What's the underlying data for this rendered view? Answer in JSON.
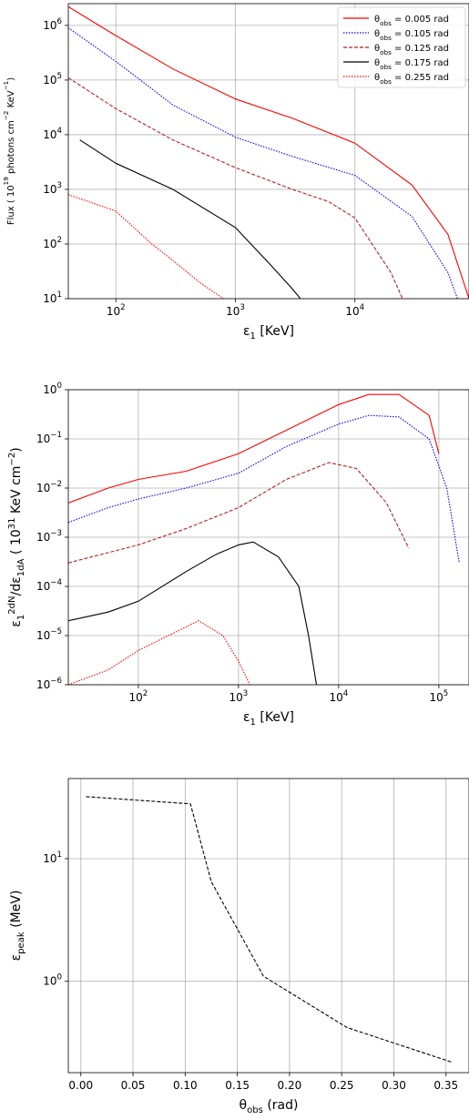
{
  "chart_data": [
    {
      "type": "line",
      "xscale": "log",
      "yscale": "log",
      "xlim": [
        40,
        90000
      ],
      "ylim": [
        10,
        2500000
      ],
      "xlabel": "ε_1 [KeV]",
      "ylabel": "Flux ( 10^19 photons cm^−2 KeV^−1)",
      "x_ticks": [
        {
          "value": 100,
          "base": "10",
          "exp": "2"
        },
        {
          "value": 1000,
          "base": "10",
          "exp": "3"
        },
        {
          "value": 10000,
          "base": "10",
          "exp": "4"
        }
      ],
      "y_ticks": [
        {
          "value": 10,
          "base": "10",
          "exp": "1"
        },
        {
          "value": 100,
          "base": "10",
          "exp": "2"
        },
        {
          "value": 1000,
          "base": "10",
          "exp": "3"
        },
        {
          "value": 10000,
          "base": "10",
          "exp": "4"
        },
        {
          "value": 100000,
          "base": "10",
          "exp": "5"
        },
        {
          "value": 1000000,
          "base": "10",
          "exp": "6"
        }
      ],
      "grid": true,
      "legend_position": "top-right",
      "series": [
        {
          "name": "θ_obs = 0.005 rad",
          "color": "#ff0000",
          "dash": "",
          "x": [
            40,
            100,
            300,
            1000,
            3000,
            10000,
            30000,
            60000,
            90000
          ],
          "y": [
            2200000,
            650000,
            160000,
            45000,
            20000,
            7000,
            1200,
            150,
            10
          ]
        },
        {
          "name": "θ_obs = 0.105 rad",
          "color": "#0000ff",
          "dash": "dotted",
          "x": [
            40,
            100,
            300,
            1000,
            3000,
            10000,
            30000,
            60000,
            72000
          ],
          "y": [
            900000,
            220000,
            35000,
            9000,
            4000,
            1800,
            320,
            30,
            10
          ]
        },
        {
          "name": "θ_obs = 0.125 rad",
          "color": "#b22222",
          "dash": "dashed",
          "x": [
            40,
            100,
            300,
            1000,
            3000,
            6000,
            10000,
            20000,
            25000
          ],
          "y": [
            110000,
            30000,
            8000,
            2500,
            1000,
            600,
            300,
            30,
            10
          ]
        },
        {
          "name": "θ_obs = 0.175 rad",
          "color": "#000000",
          "dash": "",
          "x": [
            50,
            100,
            300,
            1000,
            2000,
            3000,
            3500
          ],
          "y": [
            8000,
            3000,
            1000,
            200,
            40,
            15,
            10
          ]
        },
        {
          "name": "θ_obs = 0.255 rad",
          "color": "#ff0000",
          "dash": "dotted",
          "x": [
            40,
            100,
            200,
            300,
            500,
            700,
            800
          ],
          "y": [
            800,
            400,
            100,
            50,
            20,
            12,
            10
          ]
        }
      ]
    },
    {
      "type": "line",
      "xscale": "log",
      "yscale": "log",
      "xlim": [
        20,
        200000
      ],
      "ylim": [
        1e-06,
        1
      ],
      "xlabel": "ε_1 [KeV]",
      "ylabel": "ε_1^2dN/dε_1dA  ( 10^31 KeV cm^−2)",
      "x_ticks": [
        {
          "value": 100,
          "base": "10",
          "exp": "2"
        },
        {
          "value": 1000,
          "base": "10",
          "exp": "3"
        },
        {
          "value": 10000,
          "base": "10",
          "exp": "4"
        },
        {
          "value": 100000,
          "base": "10",
          "exp": "5"
        }
      ],
      "y_ticks": [
        {
          "value": 1e-06,
          "base": "10",
          "exp": "−6"
        },
        {
          "value": 1e-05,
          "base": "10",
          "exp": "−5"
        },
        {
          "value": 0.0001,
          "base": "10",
          "exp": "−4"
        },
        {
          "value": 0.001,
          "base": "10",
          "exp": "−3"
        },
        {
          "value": 0.01,
          "base": "10",
          "exp": "−2"
        },
        {
          "value": 0.1,
          "base": "10",
          "exp": "−1"
        },
        {
          "value": 1,
          "base": "10",
          "exp": "0"
        }
      ],
      "grid": true,
      "series": [
        {
          "color": "#ff0000",
          "dash": "",
          "x": [
            20,
            50,
            100,
            300,
            1000,
            3000,
            10000,
            20000,
            40000,
            80000,
            100000
          ],
          "y": [
            0.005,
            0.01,
            0.015,
            0.022,
            0.05,
            0.15,
            0.5,
            0.8,
            0.8,
            0.3,
            0.05
          ]
        },
        {
          "color": "#0000ff",
          "dash": "dotted",
          "x": [
            20,
            50,
            100,
            300,
            1000,
            3000,
            10000,
            20000,
            40000,
            80000,
            120000,
            160000
          ],
          "y": [
            0.002,
            0.004,
            0.006,
            0.01,
            0.02,
            0.07,
            0.2,
            0.3,
            0.28,
            0.1,
            0.01,
            0.0003
          ]
        },
        {
          "color": "#b22222",
          "dash": "dashed",
          "x": [
            20,
            100,
            300,
            1000,
            3000,
            8000,
            15000,
            30000,
            50000
          ],
          "y": [
            0.0003,
            0.0007,
            0.0015,
            0.004,
            0.015,
            0.033,
            0.025,
            0.005,
            0.0006
          ]
        },
        {
          "color": "#000000",
          "dash": "",
          "x": [
            20,
            50,
            100,
            300,
            600,
            1000,
            1400,
            2500,
            4000,
            5000,
            6000
          ],
          "y": [
            2e-05,
            3e-05,
            5e-05,
            0.0002,
            0.00045,
            0.0007,
            0.0008,
            0.0004,
            0.0001,
            1e-05,
            1e-06
          ]
        },
        {
          "color": "#ff0000",
          "dash": "dotted",
          "x": [
            20,
            50,
            100,
            200,
            400,
            700,
            1000,
            1300
          ],
          "y": [
            1e-06,
            2e-06,
            5e-06,
            1e-05,
            2e-05,
            1e-05,
            3e-06,
            1e-06
          ]
        }
      ]
    },
    {
      "type": "line",
      "xscale": "linear",
      "yscale": "log",
      "xlim": [
        -0.012,
        0.372
      ],
      "ylim": [
        0.18,
        45
      ],
      "xlabel": "θ_obs (rad)",
      "ylabel": "ε_peak (MeV)",
      "x_ticks": [
        {
          "value": 0.0,
          "label": "0.00"
        },
        {
          "value": 0.05,
          "label": "0.05"
        },
        {
          "value": 0.1,
          "label": "0.10"
        },
        {
          "value": 0.15,
          "label": "0.15"
        },
        {
          "value": 0.2,
          "label": "0.20"
        },
        {
          "value": 0.25,
          "label": "0.25"
        },
        {
          "value": 0.3,
          "label": "0.30"
        },
        {
          "value": 0.35,
          "label": "0.35"
        }
      ],
      "y_ticks": [
        {
          "value": 1,
          "base": "10",
          "exp": "0"
        },
        {
          "value": 10,
          "base": "10",
          "exp": "1"
        }
      ],
      "grid": true,
      "series": [
        {
          "color": "#000000",
          "dash": "dashed",
          "x": [
            0.005,
            0.105,
            0.125,
            0.175,
            0.255,
            0.355
          ],
          "y": [
            32,
            28,
            6.5,
            1.1,
            0.42,
            0.22
          ]
        }
      ]
    }
  ]
}
